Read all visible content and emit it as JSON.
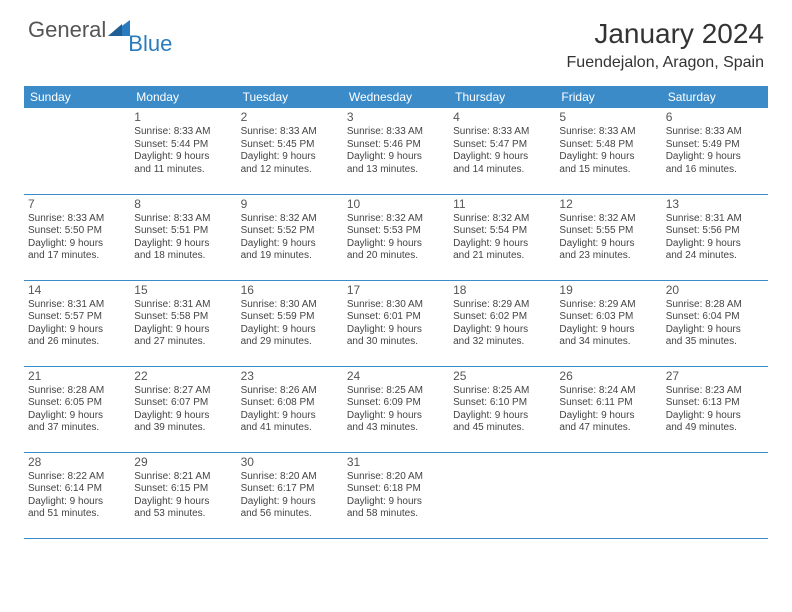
{
  "brand": {
    "word1": "General",
    "word2": "Blue",
    "triangle_color": "#2a7cbf"
  },
  "title": "January 2024",
  "location": "Fuendejalon, Aragon, Spain",
  "colors": {
    "header_bg": "#3b8bc9",
    "header_text": "#ffffff",
    "rule": "#3b8bc9",
    "body_text": "#444444",
    "background": "#ffffff"
  },
  "typography": {
    "title_fontsize": 28,
    "location_fontsize": 16,
    "dayheader_fontsize": 12,
    "cell_fontsize": 10
  },
  "day_headers": [
    "Sunday",
    "Monday",
    "Tuesday",
    "Wednesday",
    "Thursday",
    "Friday",
    "Saturday"
  ],
  "weeks": [
    [
      null,
      {
        "n": "1",
        "sr": "Sunrise: 8:33 AM",
        "ss": "Sunset: 5:44 PM",
        "d1": "Daylight: 9 hours",
        "d2": "and 11 minutes."
      },
      {
        "n": "2",
        "sr": "Sunrise: 8:33 AM",
        "ss": "Sunset: 5:45 PM",
        "d1": "Daylight: 9 hours",
        "d2": "and 12 minutes."
      },
      {
        "n": "3",
        "sr": "Sunrise: 8:33 AM",
        "ss": "Sunset: 5:46 PM",
        "d1": "Daylight: 9 hours",
        "d2": "and 13 minutes."
      },
      {
        "n": "4",
        "sr": "Sunrise: 8:33 AM",
        "ss": "Sunset: 5:47 PM",
        "d1": "Daylight: 9 hours",
        "d2": "and 14 minutes."
      },
      {
        "n": "5",
        "sr": "Sunrise: 8:33 AM",
        "ss": "Sunset: 5:48 PM",
        "d1": "Daylight: 9 hours",
        "d2": "and 15 minutes."
      },
      {
        "n": "6",
        "sr": "Sunrise: 8:33 AM",
        "ss": "Sunset: 5:49 PM",
        "d1": "Daylight: 9 hours",
        "d2": "and 16 minutes."
      }
    ],
    [
      {
        "n": "7",
        "sr": "Sunrise: 8:33 AM",
        "ss": "Sunset: 5:50 PM",
        "d1": "Daylight: 9 hours",
        "d2": "and 17 minutes."
      },
      {
        "n": "8",
        "sr": "Sunrise: 8:33 AM",
        "ss": "Sunset: 5:51 PM",
        "d1": "Daylight: 9 hours",
        "d2": "and 18 minutes."
      },
      {
        "n": "9",
        "sr": "Sunrise: 8:32 AM",
        "ss": "Sunset: 5:52 PM",
        "d1": "Daylight: 9 hours",
        "d2": "and 19 minutes."
      },
      {
        "n": "10",
        "sr": "Sunrise: 8:32 AM",
        "ss": "Sunset: 5:53 PM",
        "d1": "Daylight: 9 hours",
        "d2": "and 20 minutes."
      },
      {
        "n": "11",
        "sr": "Sunrise: 8:32 AM",
        "ss": "Sunset: 5:54 PM",
        "d1": "Daylight: 9 hours",
        "d2": "and 21 minutes."
      },
      {
        "n": "12",
        "sr": "Sunrise: 8:32 AM",
        "ss": "Sunset: 5:55 PM",
        "d1": "Daylight: 9 hours",
        "d2": "and 23 minutes."
      },
      {
        "n": "13",
        "sr": "Sunrise: 8:31 AM",
        "ss": "Sunset: 5:56 PM",
        "d1": "Daylight: 9 hours",
        "d2": "and 24 minutes."
      }
    ],
    [
      {
        "n": "14",
        "sr": "Sunrise: 8:31 AM",
        "ss": "Sunset: 5:57 PM",
        "d1": "Daylight: 9 hours",
        "d2": "and 26 minutes."
      },
      {
        "n": "15",
        "sr": "Sunrise: 8:31 AM",
        "ss": "Sunset: 5:58 PM",
        "d1": "Daylight: 9 hours",
        "d2": "and 27 minutes."
      },
      {
        "n": "16",
        "sr": "Sunrise: 8:30 AM",
        "ss": "Sunset: 5:59 PM",
        "d1": "Daylight: 9 hours",
        "d2": "and 29 minutes."
      },
      {
        "n": "17",
        "sr": "Sunrise: 8:30 AM",
        "ss": "Sunset: 6:01 PM",
        "d1": "Daylight: 9 hours",
        "d2": "and 30 minutes."
      },
      {
        "n": "18",
        "sr": "Sunrise: 8:29 AM",
        "ss": "Sunset: 6:02 PM",
        "d1": "Daylight: 9 hours",
        "d2": "and 32 minutes."
      },
      {
        "n": "19",
        "sr": "Sunrise: 8:29 AM",
        "ss": "Sunset: 6:03 PM",
        "d1": "Daylight: 9 hours",
        "d2": "and 34 minutes."
      },
      {
        "n": "20",
        "sr": "Sunrise: 8:28 AM",
        "ss": "Sunset: 6:04 PM",
        "d1": "Daylight: 9 hours",
        "d2": "and 35 minutes."
      }
    ],
    [
      {
        "n": "21",
        "sr": "Sunrise: 8:28 AM",
        "ss": "Sunset: 6:05 PM",
        "d1": "Daylight: 9 hours",
        "d2": "and 37 minutes."
      },
      {
        "n": "22",
        "sr": "Sunrise: 8:27 AM",
        "ss": "Sunset: 6:07 PM",
        "d1": "Daylight: 9 hours",
        "d2": "and 39 minutes."
      },
      {
        "n": "23",
        "sr": "Sunrise: 8:26 AM",
        "ss": "Sunset: 6:08 PM",
        "d1": "Daylight: 9 hours",
        "d2": "and 41 minutes."
      },
      {
        "n": "24",
        "sr": "Sunrise: 8:25 AM",
        "ss": "Sunset: 6:09 PM",
        "d1": "Daylight: 9 hours",
        "d2": "and 43 minutes."
      },
      {
        "n": "25",
        "sr": "Sunrise: 8:25 AM",
        "ss": "Sunset: 6:10 PM",
        "d1": "Daylight: 9 hours",
        "d2": "and 45 minutes."
      },
      {
        "n": "26",
        "sr": "Sunrise: 8:24 AM",
        "ss": "Sunset: 6:11 PM",
        "d1": "Daylight: 9 hours",
        "d2": "and 47 minutes."
      },
      {
        "n": "27",
        "sr": "Sunrise: 8:23 AM",
        "ss": "Sunset: 6:13 PM",
        "d1": "Daylight: 9 hours",
        "d2": "and 49 minutes."
      }
    ],
    [
      {
        "n": "28",
        "sr": "Sunrise: 8:22 AM",
        "ss": "Sunset: 6:14 PM",
        "d1": "Daylight: 9 hours",
        "d2": "and 51 minutes."
      },
      {
        "n": "29",
        "sr": "Sunrise: 8:21 AM",
        "ss": "Sunset: 6:15 PM",
        "d1": "Daylight: 9 hours",
        "d2": "and 53 minutes."
      },
      {
        "n": "30",
        "sr": "Sunrise: 8:20 AM",
        "ss": "Sunset: 6:17 PM",
        "d1": "Daylight: 9 hours",
        "d2": "and 56 minutes."
      },
      {
        "n": "31",
        "sr": "Sunrise: 8:20 AM",
        "ss": "Sunset: 6:18 PM",
        "d1": "Daylight: 9 hours",
        "d2": "and 58 minutes."
      },
      null,
      null,
      null
    ]
  ]
}
